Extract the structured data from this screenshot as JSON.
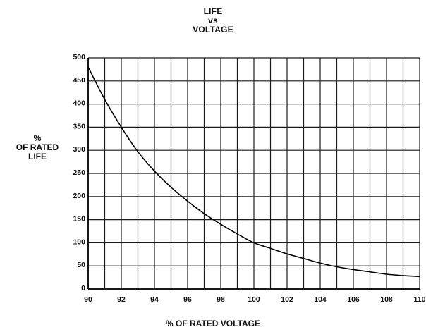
{
  "chart_data": {
    "type": "line",
    "title_lines": [
      "LIFE",
      "vs",
      "VOLTAGE"
    ],
    "ylabel_lines": [
      "%",
      "OF RATED",
      "LIFE"
    ],
    "xlabel": "% OF RATED VOLTAGE",
    "xlim": [
      90,
      110
    ],
    "ylim": [
      0,
      500
    ],
    "x_ticks": [
      90,
      92,
      94,
      96,
      98,
      100,
      102,
      104,
      106,
      108,
      110
    ],
    "y_ticks": [
      0,
      50,
      100,
      150,
      200,
      250,
      300,
      350,
      400,
      450,
      500
    ],
    "grid": true,
    "x_grid_step": 1,
    "y_grid_step": 50,
    "series": [
      {
        "x": [
          90,
          91,
          92,
          93,
          94,
          95,
          96,
          97,
          98,
          99,
          100,
          101,
          102,
          103,
          104,
          105,
          106,
          107,
          108,
          109,
          110
        ],
        "values": [
          480,
          410,
          350,
          297,
          255,
          220,
          190,
          163,
          140,
          119,
          100,
          88,
          76,
          66,
          56,
          48,
          42,
          37,
          32,
          29,
          27
        ]
      }
    ]
  }
}
